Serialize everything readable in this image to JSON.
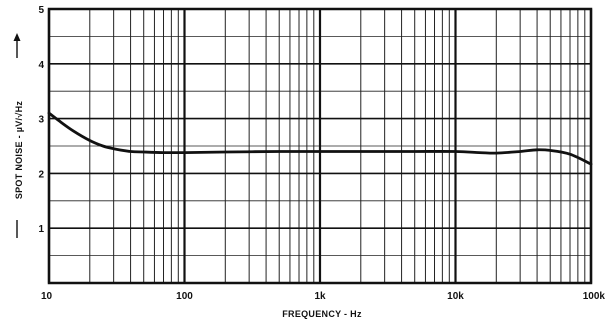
{
  "chart_data": {
    "type": "line",
    "title": "",
    "xlabel": "FREQUENCY - Hz",
    "ylabel": "SPOT NOISE - µV/√Hz",
    "x_scale": "log",
    "xlim": [
      10,
      100000
    ],
    "ylim": [
      0,
      5
    ],
    "grid": true,
    "x_ticks": [
      {
        "value": 10,
        "label": "10"
      },
      {
        "value": 100,
        "label": "100"
      },
      {
        "value": 1000,
        "label": "1k"
      },
      {
        "value": 10000,
        "label": "10k"
      },
      {
        "value": 100000,
        "label": "100k"
      }
    ],
    "y_ticks": [
      {
        "value": 1,
        "label": "1"
      },
      {
        "value": 2,
        "label": "2"
      },
      {
        "value": 3,
        "label": "3"
      },
      {
        "value": 4,
        "label": "4"
      },
      {
        "value": 5,
        "label": "5"
      }
    ],
    "series": [
      {
        "x": [
          10,
          12,
          15,
          20,
          25,
          30,
          40,
          50,
          70,
          100,
          200,
          500,
          1000,
          2000,
          5000,
          10000,
          15000,
          20000,
          30000,
          40000,
          50000,
          70000,
          100000
        ],
        "y": [
          3.1,
          2.95,
          2.78,
          2.6,
          2.5,
          2.45,
          2.4,
          2.39,
          2.38,
          2.38,
          2.39,
          2.4,
          2.4,
          2.4,
          2.4,
          2.4,
          2.38,
          2.37,
          2.4,
          2.43,
          2.42,
          2.35,
          2.17
        ]
      }
    ]
  }
}
